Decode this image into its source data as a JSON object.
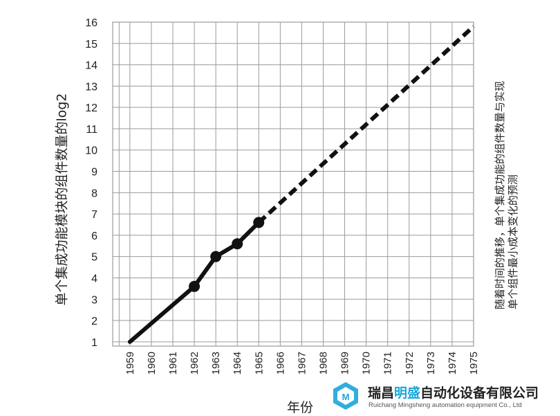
{
  "chart_data": {
    "type": "line",
    "xlabel": "年份",
    "ylabel": "单个集成功能模块的组件数量的log2",
    "annotation": [
      "随着时间的推移，单个集成功能的组件数量与实现",
      "单个组件最小成本变化的预测"
    ],
    "x_ticks": [
      "1959",
      "1960",
      "1961",
      "1962",
      "1963",
      "1964",
      "1965",
      "1966",
      "1967",
      "1968",
      "1969",
      "1970",
      "1971",
      "1972",
      "1973",
      "1974",
      "1975"
    ],
    "y_ticks": [
      "1",
      "2",
      "3",
      "4",
      "5",
      "6",
      "7",
      "8",
      "9",
      "10",
      "11",
      "12",
      "13",
      "14",
      "15",
      "16"
    ],
    "xlim": [
      1958.2,
      1975
    ],
    "ylim": [
      0.8,
      16
    ],
    "grid": true,
    "series": [
      {
        "style": "solid",
        "x": [
          1959,
          1962,
          1963,
          1964,
          1965
        ],
        "y": [
          1,
          3.6,
          5,
          5.6,
          6.6
        ],
        "markers": [
          1962,
          1963,
          1964,
          1965
        ]
      },
      {
        "style": "dashed",
        "x": [
          1965,
          1975
        ],
        "y": [
          6.6,
          15.8
        ]
      }
    ]
  },
  "watermark": {
    "name_pre": "瑞昌",
    "name_hl": "明盛",
    "name_post": "自动化设备有限公司",
    "english": "Ruichang Mingsheng automation equipment Co., Ltd"
  },
  "colors": {
    "line": "#111111",
    "grid": "#9a9a9a",
    "watermark_accent": "#1aa6d8"
  }
}
